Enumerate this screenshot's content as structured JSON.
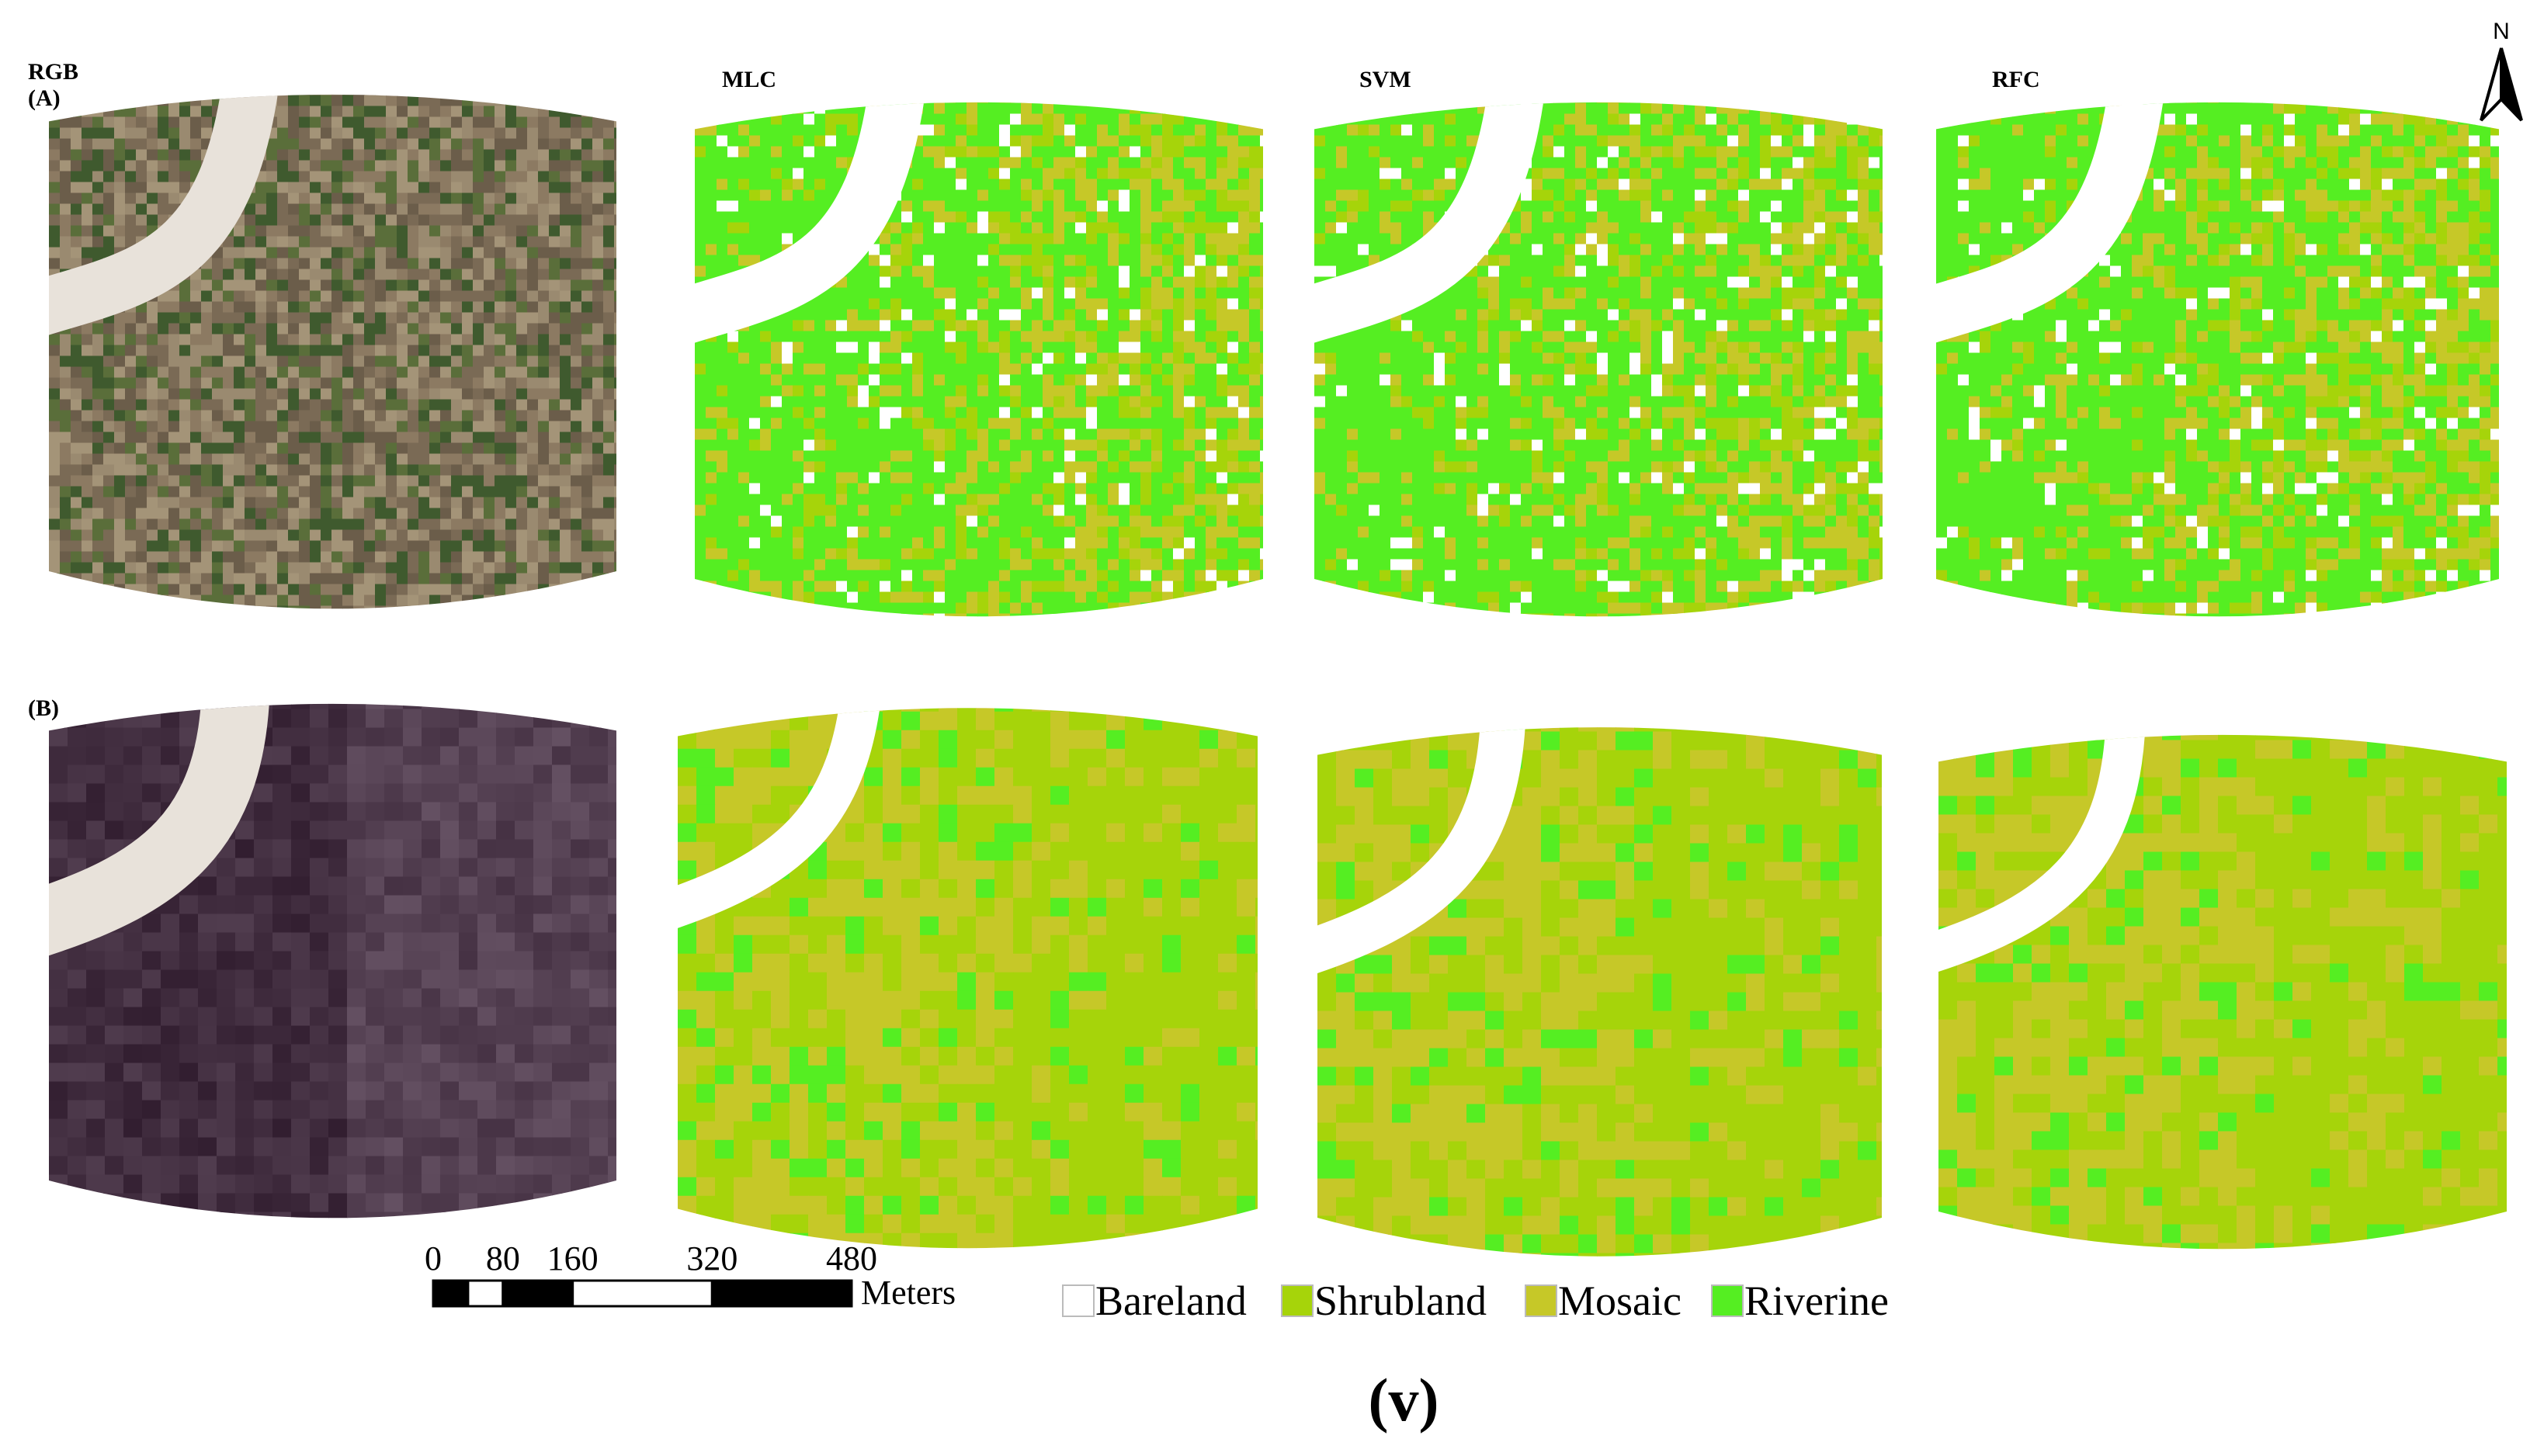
{
  "column_labels": [
    "RGB",
    "MLC",
    "SVM",
    "RFC"
  ],
  "row_labels": [
    "(A)",
    "(B)"
  ],
  "north_label": "N",
  "scale_bar": {
    "ticks": [
      0,
      80,
      160,
      320,
      480
    ],
    "unit": "Meters"
  },
  "legend": [
    {
      "label": "Bareland",
      "color": "#ffffff"
    },
    {
      "label": "Shrubland",
      "color": "#a6d40a"
    },
    {
      "label": "Mosaic",
      "color": "#c6c828"
    },
    {
      "label": "Riverine",
      "color": "#55ee22"
    }
  ],
  "caption": "(v)"
}
